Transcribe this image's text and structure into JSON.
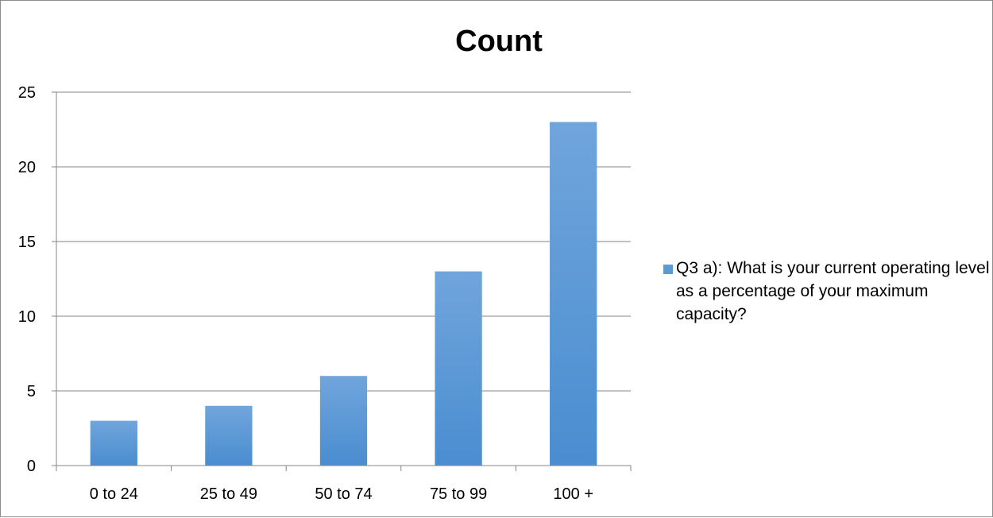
{
  "chart_data": {
    "type": "bar",
    "title": "Count",
    "categories": [
      "0 to 24",
      "25 to 49",
      "50 to 74",
      "75 to 99",
      "100 +"
    ],
    "series": [
      {
        "name": "Q3 a): What is your current operating level as a percentage of your maximum capacity?",
        "values": [
          3,
          4,
          6,
          13,
          23
        ],
        "color": "#5b9bd5"
      }
    ],
    "ylim": [
      0,
      25
    ],
    "yticks": [
      0,
      5,
      10,
      15,
      20,
      25
    ],
    "grid": true,
    "legend_position": "right"
  }
}
